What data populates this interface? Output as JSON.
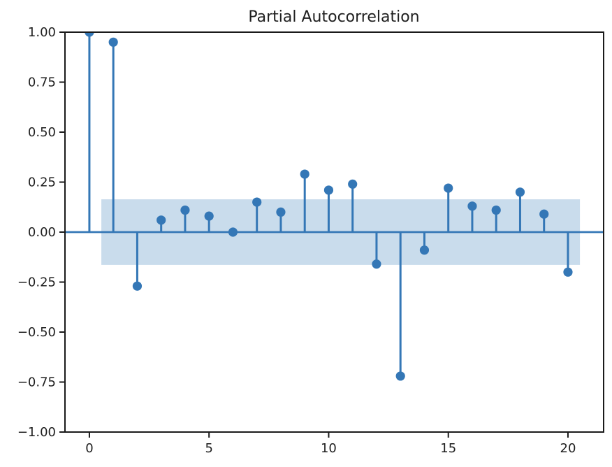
{
  "chart_data": {
    "type": "stem",
    "title": "Partial Autocorrelation",
    "x": [
      0,
      1,
      2,
      3,
      4,
      5,
      6,
      7,
      8,
      9,
      10,
      11,
      12,
      13,
      14,
      15,
      16,
      17,
      18,
      19,
      20
    ],
    "values": [
      1.0,
      0.95,
      -0.27,
      0.06,
      0.11,
      0.08,
      0.0,
      0.15,
      0.1,
      0.29,
      0.21,
      0.24,
      -0.16,
      -0.72,
      -0.09,
      0.22,
      0.13,
      0.11,
      0.2,
      0.09,
      -0.2
    ],
    "confidence_band": {
      "upper": 0.164,
      "lower": -0.164,
      "x_start": 0.5,
      "x_end": 20.5
    },
    "xlim": [
      -1.02,
      21.49
    ],
    "ylim": [
      -1.0,
      1.0
    ],
    "xticks": {
      "values": [
        0,
        5,
        10,
        15,
        20
      ],
      "labels": [
        "0",
        "5",
        "10",
        "15",
        "20"
      ]
    },
    "yticks": {
      "values": [
        1.0,
        0.75,
        0.5,
        0.25,
        0.0,
        -0.25,
        -0.5,
        -0.75,
        -1.0
      ],
      "labels": [
        "1.00",
        "0.75",
        "0.50",
        "0.25",
        "0.00",
        "−0.25",
        "−0.50",
        "−0.75",
        "−1.00"
      ]
    },
    "grid": false,
    "legend": null,
    "colors": {
      "stem": "#3477b6",
      "marker": "#3477b6",
      "zero_line": "#3477b6",
      "band": "#c9dcec",
      "spine": "#1a1a1a",
      "text": "#1f1f1f",
      "background": "#ffffff"
    }
  }
}
